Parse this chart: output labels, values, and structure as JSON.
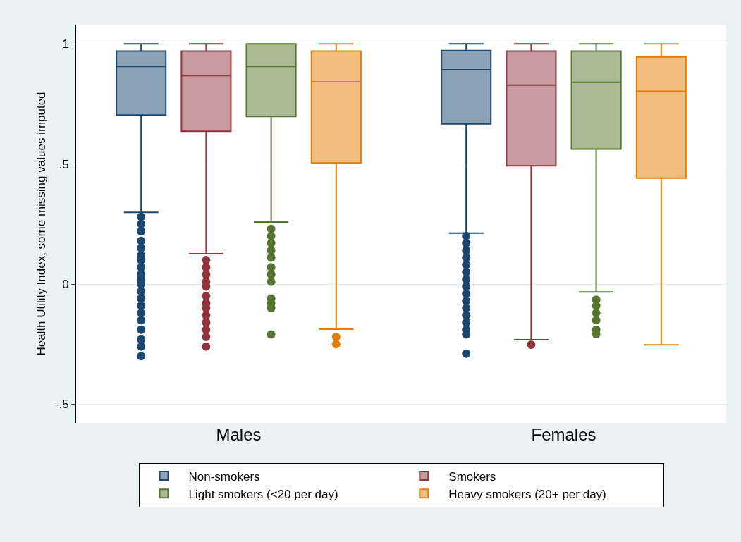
{
  "chart_data": {
    "type": "box",
    "ylabel": "Health Utility Index, some missing values imputed",
    "categories": [
      "Males",
      "Females"
    ],
    "ylim": [
      -0.578,
      1.08
    ],
    "yticks": [
      {
        "value": -0.5,
        "label": "-.5"
      },
      0,
      {
        "value": 0.5,
        "label": ".5"
      },
      1
    ],
    "grid": "y",
    "legend": "bottom",
    "marker": "circle",
    "series": [
      {
        "name": "Non-smokers",
        "color": "#1a476f",
        "boxes": [
          {
            "low": 0.299,
            "q1": 0.704,
            "median": 0.906,
            "q3": 0.97,
            "high": 1,
            "outliers": [
              0.28,
              0.25,
              0.22,
              0.18,
              0.15,
              0.12,
              0.1,
              0.07,
              0.04,
              0.02,
              0,
              -0.03,
              -0.06,
              -0.09,
              -0.12,
              -0.15,
              -0.19,
              -0.23,
              -0.26,
              -0.3
            ]
          },
          {
            "low": 0.212,
            "q1": 0.667,
            "median": 0.892,
            "q3": 0.972,
            "high": 1,
            "outliers": [
              0.2,
              0.17,
              0.14,
              0.11,
              0.08,
              0.05,
              0.02,
              -0.01,
              -0.04,
              -0.07,
              -0.1,
              -0.13,
              -0.16,
              -0.19,
              -0.21,
              -0.29
            ]
          }
        ]
      },
      {
        "name": "Smokers",
        "color": "#90353b",
        "boxes": [
          {
            "low": 0.126,
            "q1": 0.636,
            "median": 0.868,
            "q3": 0.97,
            "high": 1,
            "outliers": [
              0.1,
              0.07,
              0.04,
              0.01,
              -0.01,
              -0.05,
              -0.08,
              -0.1,
              -0.13,
              -0.16,
              -0.19,
              -0.22,
              -0.26
            ]
          },
          {
            "low": -0.232,
            "q1": 0.492,
            "median": 0.828,
            "q3": 0.97,
            "high": 1,
            "outliers": [
              -0.252
            ]
          }
        ]
      },
      {
        "name": "Light smokers (<20 per day)",
        "color": "#55752f",
        "boxes": [
          {
            "low": 0.258,
            "q1": 0.698,
            "median": 0.906,
            "q3": 1,
            "high": 1,
            "outliers": [
              0.23,
              0.2,
              0.17,
              0.14,
              0.11,
              0.07,
              0.04,
              0.01,
              -0.06,
              -0.08,
              -0.1,
              -0.21
            ]
          },
          {
            "low": -0.033,
            "q1": 0.562,
            "median": 0.84,
            "q3": 0.97,
            "high": 1,
            "outliers": [
              -0.065,
              -0.09,
              -0.12,
              -0.15,
              -0.19,
              -0.208
            ]
          }
        ]
      },
      {
        "name": "Heavy smokers (20+ per day)",
        "color": "#e37e00",
        "boxes": [
          {
            "low": -0.188,
            "q1": 0.504,
            "median": 0.842,
            "q3": 0.97,
            "high": 1,
            "outliers": [
              -0.22,
              -0.25
            ]
          },
          {
            "low": -0.253,
            "q1": 0.441,
            "median": 0.803,
            "q3": 0.946,
            "high": 1
          }
        ]
      }
    ]
  }
}
